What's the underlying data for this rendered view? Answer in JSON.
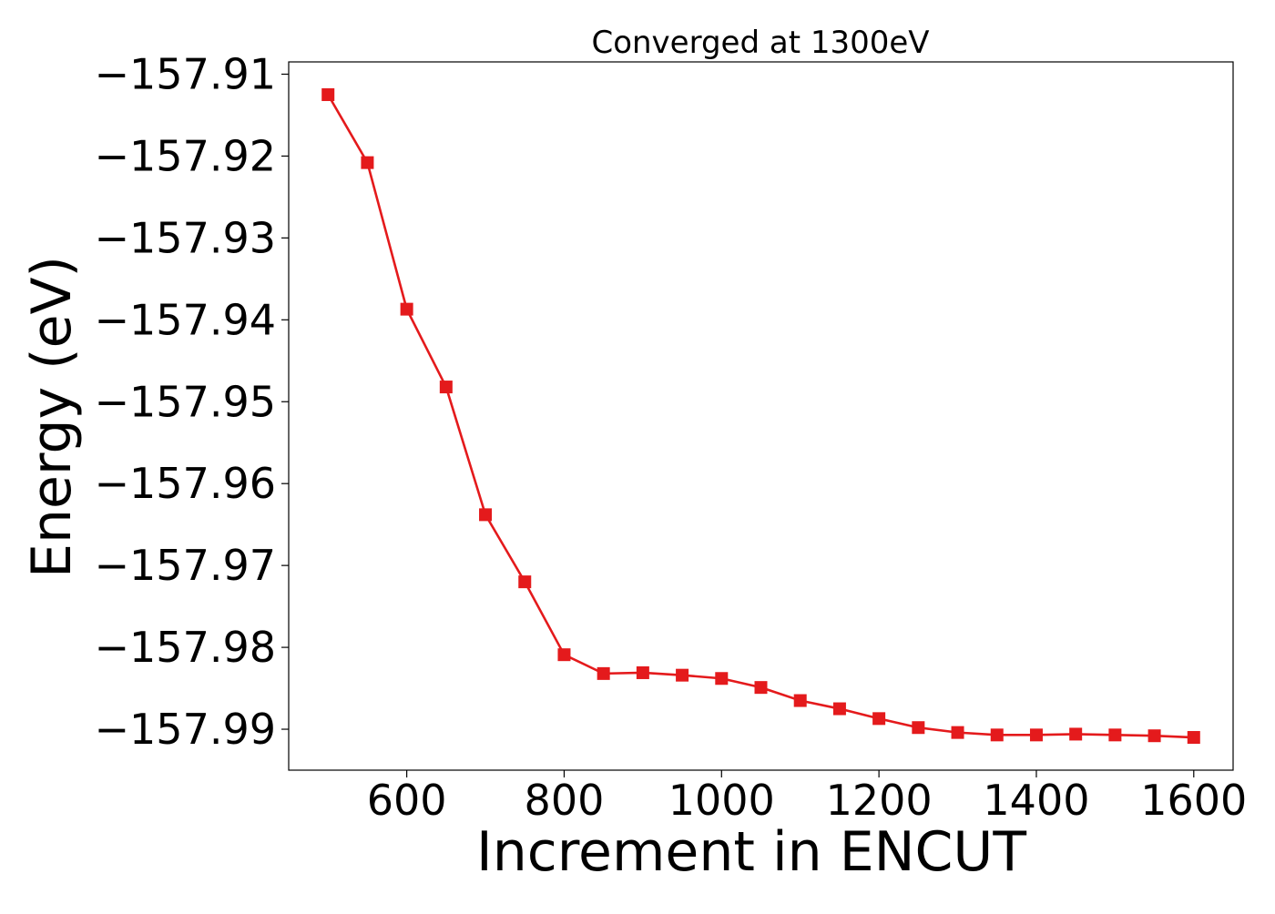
{
  "chart_data": {
    "type": "line",
    "title": "Converged at 1300eV",
    "xlabel": "Increment in ENCUT",
    "ylabel": "Energy (eV)",
    "xlim": [
      450,
      1650
    ],
    "ylim": [
      -157.995,
      -157.9085
    ],
    "x_ticks": [
      600,
      800,
      1000,
      1200,
      1400,
      1600
    ],
    "x_tick_labels": [
      "600",
      "800",
      "1000",
      "1200",
      "1400",
      "1600"
    ],
    "y_ticks": [
      -157.91,
      -157.92,
      -157.93,
      -157.94,
      -157.95,
      -157.96,
      -157.97,
      -157.98,
      -157.99
    ],
    "y_tick_labels": [
      "−157.91",
      "−157.92",
      "−157.93",
      "−157.94",
      "−157.95",
      "−157.96",
      "−157.97",
      "−157.98",
      "−157.99"
    ],
    "grid": false,
    "series": [
      {
        "color": "#e41a1c",
        "marker": "square",
        "x": [
          500,
          550,
          600,
          650,
          700,
          750,
          800,
          850,
          900,
          950,
          1000,
          1050,
          1100,
          1150,
          1200,
          1250,
          1300,
          1350,
          1400,
          1450,
          1500,
          1550,
          1600
        ],
        "y": [
          -157.9125,
          -157.9208,
          -157.9387,
          -157.9482,
          -157.9638,
          -157.972,
          -157.9809,
          -157.9832,
          -157.9831,
          -157.9834,
          -157.9838,
          -157.9849,
          -157.9865,
          -157.9875,
          -157.9887,
          -157.9898,
          -157.9904,
          -157.9907,
          -157.9907,
          -157.9906,
          -157.9907,
          -157.9908,
          -157.991
        ]
      }
    ]
  }
}
